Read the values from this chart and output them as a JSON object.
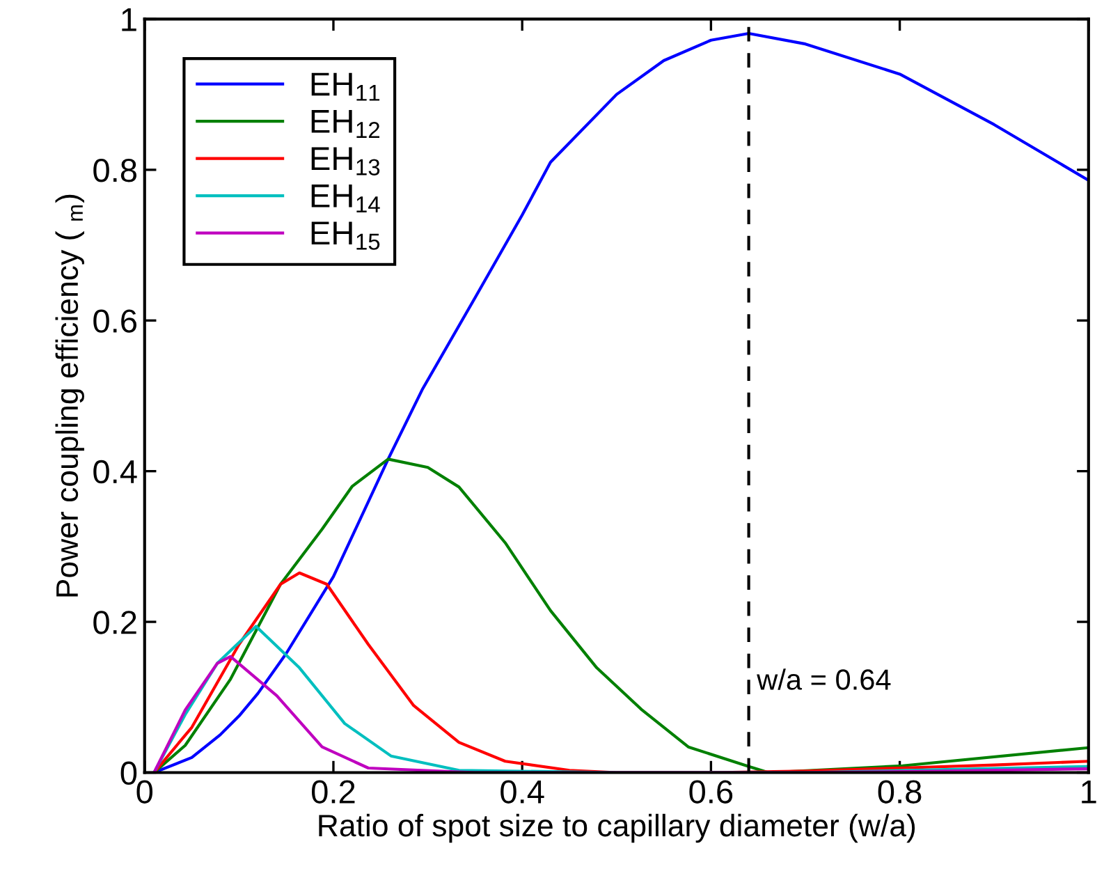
{
  "chart_data": {
    "type": "line",
    "xlabel": "Ratio of spot size to capillary diameter (w/a)",
    "ylabel": "Power coupling efficiency ( $_{m}$)",
    "series": [
      {
        "name": "EH$_{11}$",
        "color": "#0000ff",
        "x": [
          0.01,
          0.05,
          0.08,
          0.1,
          0.12,
          0.15,
          0.2,
          0.258,
          0.294,
          0.35,
          0.4,
          0.43,
          0.5,
          0.55,
          0.6,
          0.64,
          0.7,
          0.8,
          0.9,
          1.0
        ],
        "values": [
          0,
          0.02,
          0.05,
          0.075,
          0.105,
          0.158,
          0.26,
          0.416,
          0.508,
          0.63,
          0.74,
          0.81,
          0.9,
          0.945,
          0.972,
          0.981,
          0.967,
          0.927,
          0.86,
          0.786
        ]
      },
      {
        "name": "EH$_{12}$",
        "color": "#008000",
        "x": [
          0.01,
          0.043,
          0.091,
          0.144,
          0.188,
          0.22,
          0.258,
          0.3,
          0.333,
          0.382,
          0.43,
          0.479,
          0.527,
          0.576,
          0.64,
          0.661,
          0.803,
          1.0
        ],
        "values": [
          0,
          0.036,
          0.124,
          0.25,
          0.323,
          0.38,
          0.416,
          0.405,
          0.379,
          0.305,
          0.215,
          0.139,
          0.083,
          0.034,
          0.008,
          0,
          0.009,
          0.033
        ]
      },
      {
        "name": "EH$_{13}$",
        "color": "#ff0000",
        "x": [
          0.01,
          0.05,
          0.1,
          0.144,
          0.164,
          0.193,
          0.237,
          0.285,
          0.333,
          0.382,
          0.45,
          0.5,
          0.6,
          0.7,
          0.8,
          0.9,
          1.0
        ],
        "values": [
          0,
          0.06,
          0.17,
          0.25,
          0.265,
          0.25,
          0.17,
          0.089,
          0.04,
          0.015,
          0.003,
          0,
          0,
          0.002,
          0.006,
          0.01,
          0.015
        ]
      },
      {
        "name": "EH$_{14}$",
        "color": "#00bfbf",
        "x": [
          0.01,
          0.043,
          0.077,
          0.118,
          0.164,
          0.212,
          0.261,
          0.333,
          0.5,
          0.7,
          0.85,
          1.0
        ],
        "values": [
          0,
          0.077,
          0.145,
          0.194,
          0.139,
          0.065,
          0.022,
          0.003,
          0,
          0,
          0.004,
          0.008
        ]
      },
      {
        "name": "EH$_{15}$",
        "color": "#bf00bf",
        "x": [
          0.01,
          0.043,
          0.077,
          0.091,
          0.14,
          0.188,
          0.237,
          0.35,
          0.5,
          0.7,
          0.85,
          1.0
        ],
        "values": [
          0,
          0.083,
          0.145,
          0.154,
          0.102,
          0.034,
          0.006,
          0,
          0,
          0,
          0.002,
          0.005
        ]
      }
    ],
    "xlim": [
      0,
      1
    ],
    "xticks": [
      0,
      0.2,
      0.4,
      0.6,
      0.8,
      1
    ],
    "ylim": [
      0,
      1
    ],
    "yticks": [
      0,
      0.2,
      0.4,
      0.6,
      0.8,
      1
    ],
    "ref_lines": [
      {
        "axis": "x",
        "value": 0.64,
        "label": "w/a = 0.64",
        "color": "#000000",
        "line_style": "dashed"
      }
    ],
    "legend": "top left",
    "grid": false,
    "marker": "none",
    "line_style": "solid"
  }
}
